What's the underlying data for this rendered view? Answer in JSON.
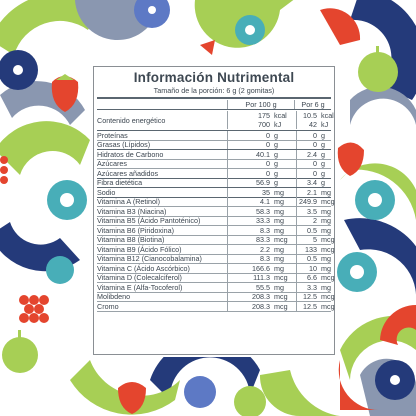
{
  "colors": {
    "navy": "#243a7a",
    "lime": "#a7cf55",
    "teal": "#48aeb8",
    "red": "#e4452e",
    "slate": "#8a97b0",
    "blueberry": "#5d79c5",
    "label_border": "#8a8f94"
  },
  "icons": [
    "blueberry-icon",
    "strawberry-icon",
    "apple-icon",
    "raspberry-icon",
    "orange-slice-icon",
    "watermelon-slice-icon"
  ],
  "label": {
    "title": "Información Nutrimental",
    "serving": "Tamaño de la porción: 6 g (2 gomitas)",
    "col_100": "Por 100 g",
    "col_6": "Por 6 g",
    "energy": {
      "name": "Contenido energético",
      "v1a": "175",
      "u1a": "kcal",
      "v2a": "10.5",
      "u2a": "kcal",
      "v1b": "700",
      "u1b": "kJ",
      "v2b": "42",
      "u2b": "kJ"
    },
    "rows": [
      {
        "name": "Proteínas",
        "v1": "0",
        "u1": "g",
        "v2": "0",
        "u2": "g"
      },
      {
        "name": "Grasas (Lípidos)",
        "v1": "0",
        "u1": "g",
        "v2": "0",
        "u2": "g"
      },
      {
        "name": "Hidratos de Carbono",
        "v1": "40.1",
        "u1": "g",
        "v2": "2.4",
        "u2": "g"
      },
      {
        "name": "Azúcares",
        "v1": "0",
        "u1": "g",
        "v2": "0",
        "u2": "g"
      },
      {
        "name": "Azúcares añadidos",
        "v1": "0",
        "u1": "g",
        "v2": "0",
        "u2": "g"
      },
      {
        "name": "Fibra dietética",
        "v1": "56.9",
        "u1": "g",
        "v2": "3.4",
        "u2": "g"
      },
      {
        "name": "Sodio",
        "v1": "35",
        "u1": "mg",
        "v2": "2.1",
        "u2": "mg"
      },
      {
        "name": "Vitamina A (Retinol)",
        "v1": "4.1",
        "u1": "mg",
        "v2": "249.9",
        "u2": "mcg"
      },
      {
        "name": "Vitamina B3 (Niacina)",
        "v1": "58.3",
        "u1": "mg",
        "v2": "3.5",
        "u2": "mg"
      },
      {
        "name": "Vitamina B5 (Ácido Pantoténico)",
        "v1": "33.3",
        "u1": "mg",
        "v2": "2",
        "u2": "mg"
      },
      {
        "name": "Vitamina B6 (Piridoxina)",
        "v1": "8.3",
        "u1": "mg",
        "v2": "0.5",
        "u2": "mg"
      },
      {
        "name": "Vitamina B8 (Biotina)",
        "v1": "83.3",
        "u1": "mcg",
        "v2": "5",
        "u2": "mcg"
      },
      {
        "name": "Vitamina B9 (Ácido Fólico)",
        "v1": "2.2",
        "u1": "mg",
        "v2": "133",
        "u2": "mcg"
      },
      {
        "name": "Vitamina B12 (Cianocobalamina)",
        "v1": "8.3",
        "u1": "mg",
        "v2": "0.5",
        "u2": "mg"
      },
      {
        "name": "Vitamina C (Ácido Ascórbico)",
        "v1": "166.6",
        "u1": "mg",
        "v2": "10",
        "u2": "mg"
      },
      {
        "name": "Vitamina D (Colecalciferol)",
        "v1": "111.3",
        "u1": "mcg",
        "v2": "6.6",
        "u2": "mcg"
      },
      {
        "name": "Vitamina E (Alfa-Tocoferol)",
        "v1": "55.5",
        "u1": "mg",
        "v2": "3.3",
        "u2": "mg"
      },
      {
        "name": "Molibdeno",
        "v1": "208.3",
        "u1": "mcg",
        "v2": "12.5",
        "u2": "mcg"
      },
      {
        "name": "Cromo",
        "v1": "208.3",
        "u1": "mcg",
        "v2": "12.5",
        "u2": "mcg"
      }
    ]
  }
}
